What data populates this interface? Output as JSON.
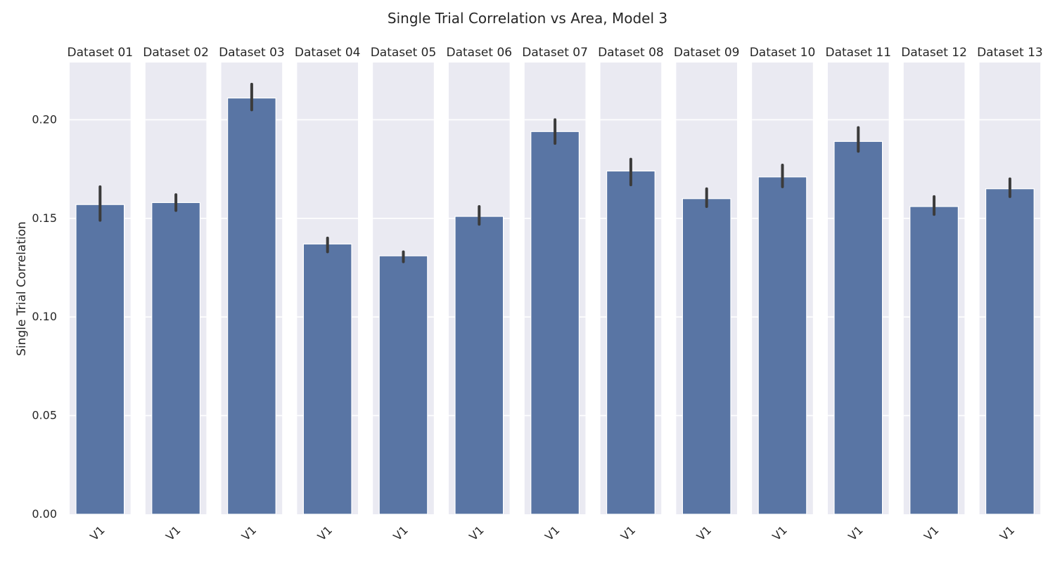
{
  "chart_data": {
    "type": "bar",
    "title": "Single Trial Correlation vs Area, Model 3",
    "ylabel": "Single Trial Correlation",
    "xlabel": "",
    "ylim": [
      0,
      0.229
    ],
    "yticks": [
      0.0,
      0.05,
      0.1,
      0.15,
      0.2
    ],
    "ytick_labels": [
      "0.00",
      "0.05",
      "0.10",
      "0.15",
      "0.20"
    ],
    "grid": true,
    "panels": [
      {
        "title": "Dataset 01",
        "category": "V1",
        "value": 0.157,
        "ci": [
          0.149,
          0.166
        ]
      },
      {
        "title": "Dataset 02",
        "category": "V1",
        "value": 0.158,
        "ci": [
          0.154,
          0.162
        ]
      },
      {
        "title": "Dataset 03",
        "category": "V1",
        "value": 0.211,
        "ci": [
          0.205,
          0.218
        ]
      },
      {
        "title": "Dataset 04",
        "category": "V1",
        "value": 0.137,
        "ci": [
          0.133,
          0.14
        ]
      },
      {
        "title": "Dataset 05",
        "category": "V1",
        "value": 0.131,
        "ci": [
          0.128,
          0.133
        ]
      },
      {
        "title": "Dataset 06",
        "category": "V1",
        "value": 0.151,
        "ci": [
          0.147,
          0.156
        ]
      },
      {
        "title": "Dataset 07",
        "category": "V1",
        "value": 0.194,
        "ci": [
          0.188,
          0.2
        ]
      },
      {
        "title": "Dataset 08",
        "category": "V1",
        "value": 0.174,
        "ci": [
          0.167,
          0.18
        ]
      },
      {
        "title": "Dataset 09",
        "category": "V1",
        "value": 0.16,
        "ci": [
          0.156,
          0.165
        ]
      },
      {
        "title": "Dataset 10",
        "category": "V1",
        "value": 0.171,
        "ci": [
          0.166,
          0.177
        ]
      },
      {
        "title": "Dataset 11",
        "category": "V1",
        "value": 0.189,
        "ci": [
          0.184,
          0.196
        ]
      },
      {
        "title": "Dataset 12",
        "category": "V1",
        "value": 0.156,
        "ci": [
          0.152,
          0.161
        ]
      },
      {
        "title": "Dataset 13",
        "category": "V1",
        "value": 0.165,
        "ci": [
          0.161,
          0.17
        ]
      }
    ],
    "colors": {
      "bar": "#5975a4",
      "errorbar": "#3b3b3b",
      "panel_bg": "#eaeaf2",
      "grid": "#ffffff"
    }
  }
}
